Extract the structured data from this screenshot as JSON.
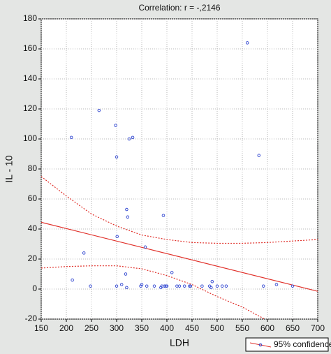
{
  "chart_data": {
    "type": "scatter",
    "title": "Correlation: r = -,2146",
    "x_label": "LDH",
    "y_label": "IL - 10",
    "xlim": [
      150,
      700
    ],
    "xticks": [
      150,
      200,
      250,
      300,
      350,
      400,
      450,
      500,
      550,
      600,
      650,
      700
    ],
    "ylim": [
      -20,
      180
    ],
    "yticks": [
      -20,
      0,
      20,
      40,
      60,
      80,
      100,
      120,
      140,
      160,
      180
    ],
    "grid": true,
    "point_color": "#2f45d0",
    "line_color": "#e0302a",
    "x": [
      210,
      212,
      235,
      248,
      265,
      298,
      300,
      300,
      301,
      310,
      318,
      320,
      320,
      322,
      325,
      332,
      348,
      350,
      357,
      360,
      375,
      388,
      390,
      393,
      395,
      398,
      400,
      410,
      420,
      425,
      435,
      445,
      447,
      470,
      485,
      488,
      490,
      500,
      510,
      518,
      560,
      583,
      592,
      618,
      650
    ],
    "y": [
      101,
      6,
      24,
      2,
      119,
      109,
      2,
      88,
      35,
      3,
      10,
      53,
      1,
      48,
      100,
      101,
      2,
      3,
      28,
      2,
      2,
      1,
      2,
      49,
      2,
      2,
      2,
      11,
      2,
      2,
      2,
      2,
      2,
      2,
      2,
      1,
      5,
      2,
      2,
      2,
      164,
      89,
      2,
      3,
      2
    ],
    "fit": {
      "x": [
        150,
        700
      ],
      "y": [
        44.5,
        -1.5
      ]
    },
    "confidence": {
      "name": "95% confidence",
      "x": [
        150,
        200,
        250,
        300,
        350,
        400,
        450,
        500,
        550,
        600,
        650,
        700
      ],
      "upper": [
        75,
        62,
        50,
        42,
        36,
        33,
        31,
        30.5,
        30.5,
        31,
        32,
        33
      ],
      "lower": [
        14,
        15,
        15.5,
        15.5,
        13.5,
        9,
        3,
        -5,
        -12,
        -21,
        null,
        null
      ]
    }
  }
}
